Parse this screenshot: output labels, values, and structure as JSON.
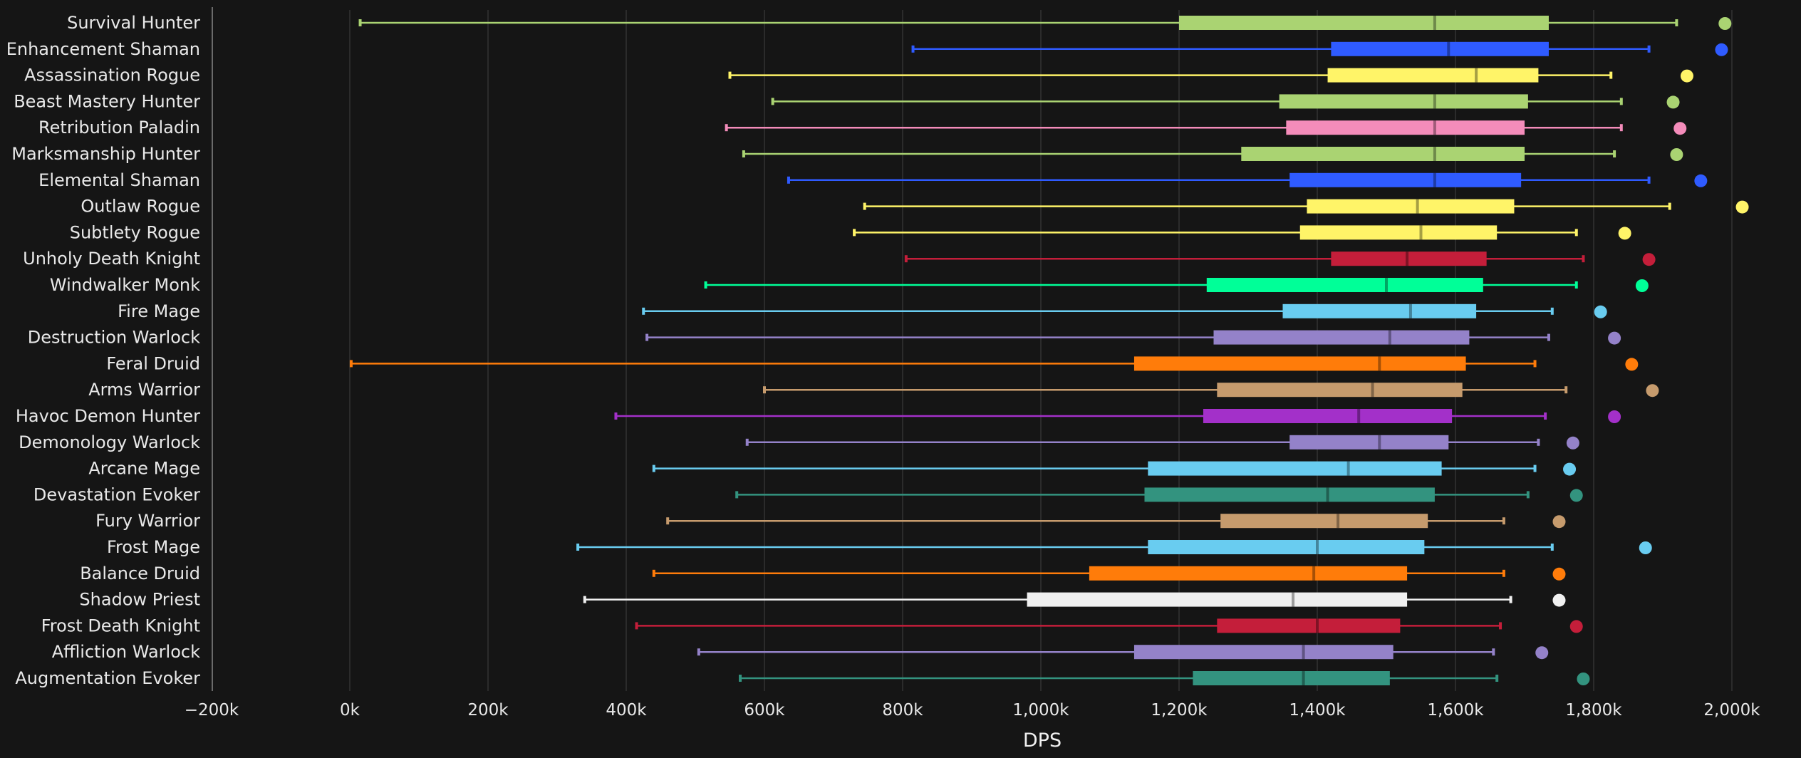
{
  "chart_data": {
    "type": "boxplot",
    "xlabel": "DPS",
    "xlim": [
      -200000,
      2100000
    ],
    "x_ticks": [
      -200000,
      0,
      200000,
      400000,
      600000,
      800000,
      1000000,
      1200000,
      1400000,
      1600000,
      1800000,
      2000000
    ],
    "x_tick_labels": [
      "−200k",
      "0k",
      "200k",
      "400k",
      "600k",
      "800k",
      "1,000k",
      "1,200k",
      "1,400k",
      "1,600k",
      "1,800k",
      "2,000k"
    ],
    "grid": true,
    "series": [
      {
        "name": "Survival Hunter",
        "color": "#aad372",
        "min": 15000,
        "q1": 1200000,
        "median": 1570000,
        "q3": 1735000,
        "max": 1920000,
        "outlier": 1990000
      },
      {
        "name": "Enhancement Shaman",
        "color": "#2f5bff",
        "min": 815000,
        "q1": 1420000,
        "median": 1590000,
        "q3": 1735000,
        "max": 1880000,
        "outlier": 1985000
      },
      {
        "name": "Assassination Rogue",
        "color": "#fff468",
        "min": 550000,
        "q1": 1415000,
        "median": 1630000,
        "q3": 1720000,
        "max": 1825000,
        "outlier": 1935000
      },
      {
        "name": "Beast Mastery Hunter",
        "color": "#aad372",
        "min": 612000,
        "q1": 1345000,
        "median": 1570000,
        "q3": 1705000,
        "max": 1840000,
        "outlier": 1915000
      },
      {
        "name": "Retribution Paladin",
        "color": "#f48cba",
        "min": 545000,
        "q1": 1355000,
        "median": 1570000,
        "q3": 1700000,
        "max": 1840000,
        "outlier": 1925000
      },
      {
        "name": "Marksmanship Hunter",
        "color": "#aad372",
        "min": 570000,
        "q1": 1290000,
        "median": 1570000,
        "q3": 1700000,
        "max": 1830000,
        "outlier": 1920000
      },
      {
        "name": "Elemental Shaman",
        "color": "#2f5bff",
        "min": 635000,
        "q1": 1360000,
        "median": 1570000,
        "q3": 1695000,
        "max": 1880000,
        "outlier": 1955000
      },
      {
        "name": "Outlaw Rogue",
        "color": "#fff468",
        "min": 745000,
        "q1": 1385000,
        "median": 1545000,
        "q3": 1685000,
        "max": 1910000,
        "outlier": 2015000
      },
      {
        "name": "Subtlety Rogue",
        "color": "#fff468",
        "min": 730000,
        "q1": 1375000,
        "median": 1550000,
        "q3": 1660000,
        "max": 1775000,
        "outlier": 1845000
      },
      {
        "name": "Unholy Death Knight",
        "color": "#c41e3a",
        "min": 805000,
        "q1": 1420000,
        "median": 1530000,
        "q3": 1645000,
        "max": 1785000,
        "outlier": 1880000
      },
      {
        "name": "Windwalker Monk",
        "color": "#00ff98",
        "min": 515000,
        "q1": 1240000,
        "median": 1500000,
        "q3": 1640000,
        "max": 1775000,
        "outlier": 1870000
      },
      {
        "name": "Fire Mage",
        "color": "#69ccf0",
        "min": 425000,
        "q1": 1350000,
        "median": 1535000,
        "q3": 1630000,
        "max": 1740000,
        "outlier": 1810000
      },
      {
        "name": "Destruction Warlock",
        "color": "#9482c9",
        "min": 430000,
        "q1": 1250000,
        "median": 1505000,
        "q3": 1620000,
        "max": 1735000,
        "outlier": 1830000
      },
      {
        "name": "Feral Druid",
        "color": "#ff7c0a",
        "min": 2000,
        "q1": 1135000,
        "median": 1490000,
        "q3": 1615000,
        "max": 1715000,
        "outlier": 1855000
      },
      {
        "name": "Arms Warrior",
        "color": "#c69b6d",
        "min": 600000,
        "q1": 1255000,
        "median": 1480000,
        "q3": 1610000,
        "max": 1760000,
        "outlier": 1885000
      },
      {
        "name": "Havoc Demon Hunter",
        "color": "#a330c9",
        "min": 385000,
        "q1": 1235000,
        "median": 1460000,
        "q3": 1595000,
        "max": 1730000,
        "outlier": 1830000
      },
      {
        "name": "Demonology Warlock",
        "color": "#9482c9",
        "min": 575000,
        "q1": 1360000,
        "median": 1490000,
        "q3": 1590000,
        "max": 1720000,
        "outlier": 1770000
      },
      {
        "name": "Arcane Mage",
        "color": "#69ccf0",
        "min": 440000,
        "q1": 1155000,
        "median": 1445000,
        "q3": 1580000,
        "max": 1715000,
        "outlier": 1765000
      },
      {
        "name": "Devastation Evoker",
        "color": "#33937f",
        "min": 560000,
        "q1": 1150000,
        "median": 1415000,
        "q3": 1570000,
        "max": 1705000,
        "outlier": 1775000
      },
      {
        "name": "Fury Warrior",
        "color": "#c69b6d",
        "min": 460000,
        "q1": 1260000,
        "median": 1430000,
        "q3": 1560000,
        "max": 1670000,
        "outlier": 1750000
      },
      {
        "name": "Frost Mage",
        "color": "#69ccf0",
        "min": 330000,
        "q1": 1155000,
        "median": 1400000,
        "q3": 1555000,
        "max": 1740000,
        "outlier": 1875000
      },
      {
        "name": "Balance Druid",
        "color": "#ff7c0a",
        "min": 440000,
        "q1": 1070000,
        "median": 1395000,
        "q3": 1530000,
        "max": 1670000,
        "outlier": 1750000
      },
      {
        "name": "Shadow Priest",
        "color": "#f0f0f0",
        "min": 340000,
        "q1": 980000,
        "median": 1365000,
        "q3": 1530000,
        "max": 1680000,
        "outlier": 1750000
      },
      {
        "name": "Frost Death Knight",
        "color": "#c41e3a",
        "min": 415000,
        "q1": 1255000,
        "median": 1400000,
        "q3": 1520000,
        "max": 1665000,
        "outlier": 1775000
      },
      {
        "name": "Affliction Warlock",
        "color": "#9482c9",
        "min": 505000,
        "q1": 1135000,
        "median": 1380000,
        "q3": 1510000,
        "max": 1655000,
        "outlier": 1725000
      },
      {
        "name": "Augmentation Evoker",
        "color": "#33937f",
        "min": 565000,
        "q1": 1220000,
        "median": 1380000,
        "q3": 1505000,
        "max": 1660000,
        "outlier": 1785000
      }
    ]
  }
}
